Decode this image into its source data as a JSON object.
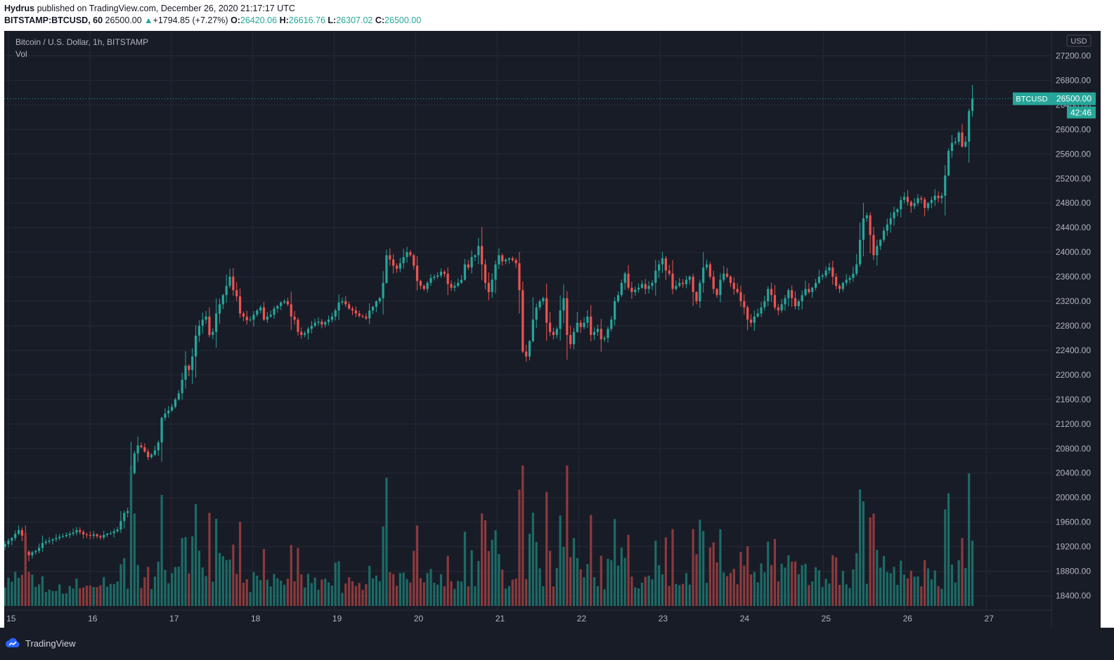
{
  "header": {
    "publisher": "Hydrus",
    "published_text": "published on TradingView.com, December 26, 2020 21:17:17 UTC",
    "symbol": "BITSTAMP:BTCUSD, 60",
    "last": "26500.00",
    "change_arrow": "▲",
    "change": "+1794.85 (+7.27%)",
    "o_label": "O:",
    "o_val": "26420.06",
    "h_label": "H:",
    "h_val": "26616.76",
    "l_label": "L:",
    "l_val": "26307.02",
    "c_label": "C:",
    "c_val": "26500.00"
  },
  "legend": {
    "title": "Bitcoin / U.S. Dollar, 1h, BITSTAMP",
    "vol": "Vol"
  },
  "price_axis": {
    "currency": "USD",
    "last_label": "BTCUSD",
    "last_value": "26500.00",
    "countdown": "42:46"
  },
  "footer": {
    "brand": "TradingView"
  },
  "colors": {
    "background": "#181c27",
    "grid": "#262a36",
    "up": "#26a69a",
    "down": "#ef5350",
    "up_vol": "#1d6b66",
    "down_vol": "#8b3a3d",
    "axis_text": "#b2b5be"
  },
  "chart_data": {
    "type": "candlestick",
    "title": "Bitcoin / U.S. Dollar, 1h, BITSTAMP",
    "series": [
      {
        "name": "BTCUSD"
      },
      {
        "name": "Vol"
      }
    ],
    "ylim": [
      18200,
      27400
    ],
    "y_ticks": [
      27200,
      26800,
      26400,
      26000,
      25600,
      25200,
      24800,
      24400,
      24000,
      23600,
      23200,
      22800,
      22400,
      22000,
      21600,
      21200,
      20800,
      20400,
      20000,
      19600,
      19200,
      18800,
      18400
    ],
    "x_ticks": [
      "15",
      "16",
      "17",
      "18",
      "19",
      "20",
      "21",
      "22",
      "23",
      "24",
      "25",
      "26",
      "27"
    ],
    "x_range_days": [
      14.95,
      27.8
    ],
    "last_price": 26500.0,
    "closes": [
      19240,
      19300,
      19340,
      19410,
      19470,
      19380,
      19120,
      19060,
      19110,
      19130,
      19180,
      19260,
      19280,
      19300,
      19320,
      19340,
      19360,
      19370,
      19390,
      19410,
      19430,
      19470,
      19440,
      19400,
      19390,
      19380,
      19400,
      19370,
      19350,
      19390,
      19410,
      19420,
      19450,
      19480,
      19620,
      19750,
      19780,
      20400,
      20720,
      20850,
      20820,
      20750,
      20660,
      20700,
      20770,
      20900,
      21300,
      21370,
      21420,
      21480,
      21600,
      21700,
      21920,
      22150,
      22080,
      22300,
      22640,
      22800,
      22900,
      22950,
      22650,
      22700,
      23000,
      23150,
      23300,
      23450,
      23600,
      23380,
      23280,
      23000,
      22950,
      22890,
      22900,
      22980,
      23050,
      23100,
      22900,
      22950,
      22980,
      23080,
      23120,
      23180,
      23200,
      23150,
      22950,
      22900,
      22700,
      22650,
      22680,
      22750,
      22800,
      22850,
      22870,
      22820,
      22860,
      22900,
      22950,
      23050,
      23180,
      23200,
      23150,
      23080,
      23050,
      23000,
      22960,
      22950,
      22920,
      23050,
      23110,
      23200,
      23250,
      23500,
      23950,
      23880,
      23780,
      23730,
      23820,
      23920,
      24000,
      23950,
      23780,
      23530,
      23450,
      23400,
      23500,
      23580,
      23600,
      23620,
      23680,
      23650,
      23480,
      23420,
      23450,
      23500,
      23550,
      23800,
      23750,
      23920,
      23950,
      24100,
      23800,
      23500,
      23350,
      23550,
      23800,
      23950,
      23850,
      23880,
      23900,
      23870,
      23820,
      23380,
      22380,
      22300,
      22550,
      22900,
      23100,
      23200,
      23250,
      22850,
      22700,
      22650,
      22750,
      23050,
      23250,
      22650,
      22500,
      22700,
      22850,
      22780,
      22850,
      22950,
      22650,
      22700,
      22750,
      22580,
      22600,
      22750,
      22900,
      23200,
      23300,
      23500,
      23650,
      23420,
      23350,
      23390,
      23420,
      23480,
      23400,
      23450,
      23500,
      23700,
      23800,
      23900,
      23700,
      23650,
      23400,
      23450,
      23500,
      23480,
      23550,
      23600,
      23350,
      23200,
      23500,
      23750,
      23800,
      23600,
      23400,
      23300,
      23550,
      23650,
      23600,
      23500,
      23400,
      23350,
      23200,
      23100,
      22900,
      22850,
      22950,
      23000,
      23100,
      23200,
      23400,
      23300,
      23100,
      23050,
      23150,
      23250,
      23380,
      23250,
      23120,
      23200,
      23300,
      23400,
      23350,
      23420,
      23500,
      23600,
      23620,
      23700,
      23750,
      23600,
      23450,
      23400,
      23500,
      23550,
      23580,
      23650,
      23800,
      24200,
      24550,
      24600,
      24280,
      23950,
      24100,
      24200,
      24350,
      24450,
      24550,
      24650,
      24700,
      24850,
      24900,
      24820,
      24750,
      24800,
      24880,
      24860,
      24720,
      24800,
      24850,
      24920,
      24880,
      24920,
      25250,
      25650,
      25780,
      25800,
      25950,
      25720,
      25800,
      26300,
      26500
    ]
  }
}
